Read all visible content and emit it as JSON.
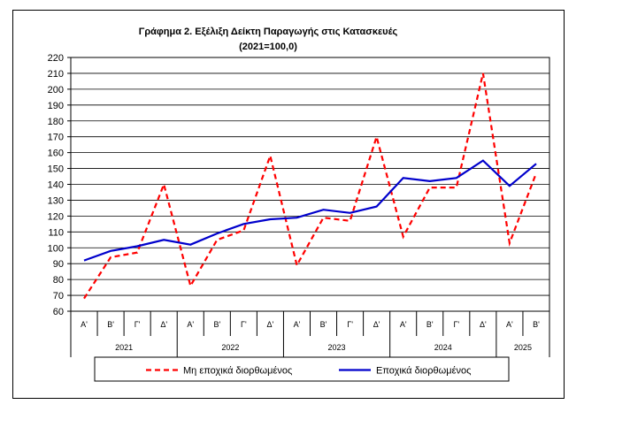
{
  "chart_data": {
    "type": "line",
    "title": "Γράφημα 2. Εξέλιξη  Δείκτη  Παραγωγής  στις  Κατασκευές",
    "subtitle": "(2021=100,0)",
    "xlabel": "",
    "ylabel": "",
    "ylim": [
      60,
      220
    ],
    "yticks": [
      60,
      70,
      80,
      90,
      100,
      110,
      120,
      130,
      140,
      150,
      160,
      170,
      180,
      190,
      200,
      210,
      220
    ],
    "grid": true,
    "legend_position": "bottom",
    "categories": [
      "Α'",
      "Β'",
      "Γ'",
      "Δ'",
      "Α'",
      "Β'",
      "Γ'",
      "Δ'",
      "Α'",
      "Β'",
      "Γ'",
      "Δ'",
      "Α'",
      "Β'",
      "Γ'",
      "Δ'",
      "Α'",
      "Β'"
    ],
    "year_groups": [
      {
        "label": "2021",
        "span": 4
      },
      {
        "label": "2022",
        "span": 4
      },
      {
        "label": "2023",
        "span": 4
      },
      {
        "label": "2024",
        "span": 4
      },
      {
        "label": "2025",
        "span": 2
      }
    ],
    "series": [
      {
        "name": "Μη εποχικά διορθωμένος",
        "style": "dashed",
        "color": "#ff0000",
        "values": [
          68,
          94,
          97,
          140,
          76,
          105,
          111,
          158,
          89,
          119,
          117,
          170,
          107,
          138,
          138,
          210,
          103,
          147
        ]
      },
      {
        "name": "Εποχικά διορθωμένος",
        "style": "solid",
        "color": "#0000cc",
        "values": [
          92,
          98,
          101,
          105,
          102,
          109,
          115,
          118,
          119,
          124,
          122,
          126,
          144,
          142,
          144,
          155,
          139,
          153
        ]
      }
    ]
  }
}
